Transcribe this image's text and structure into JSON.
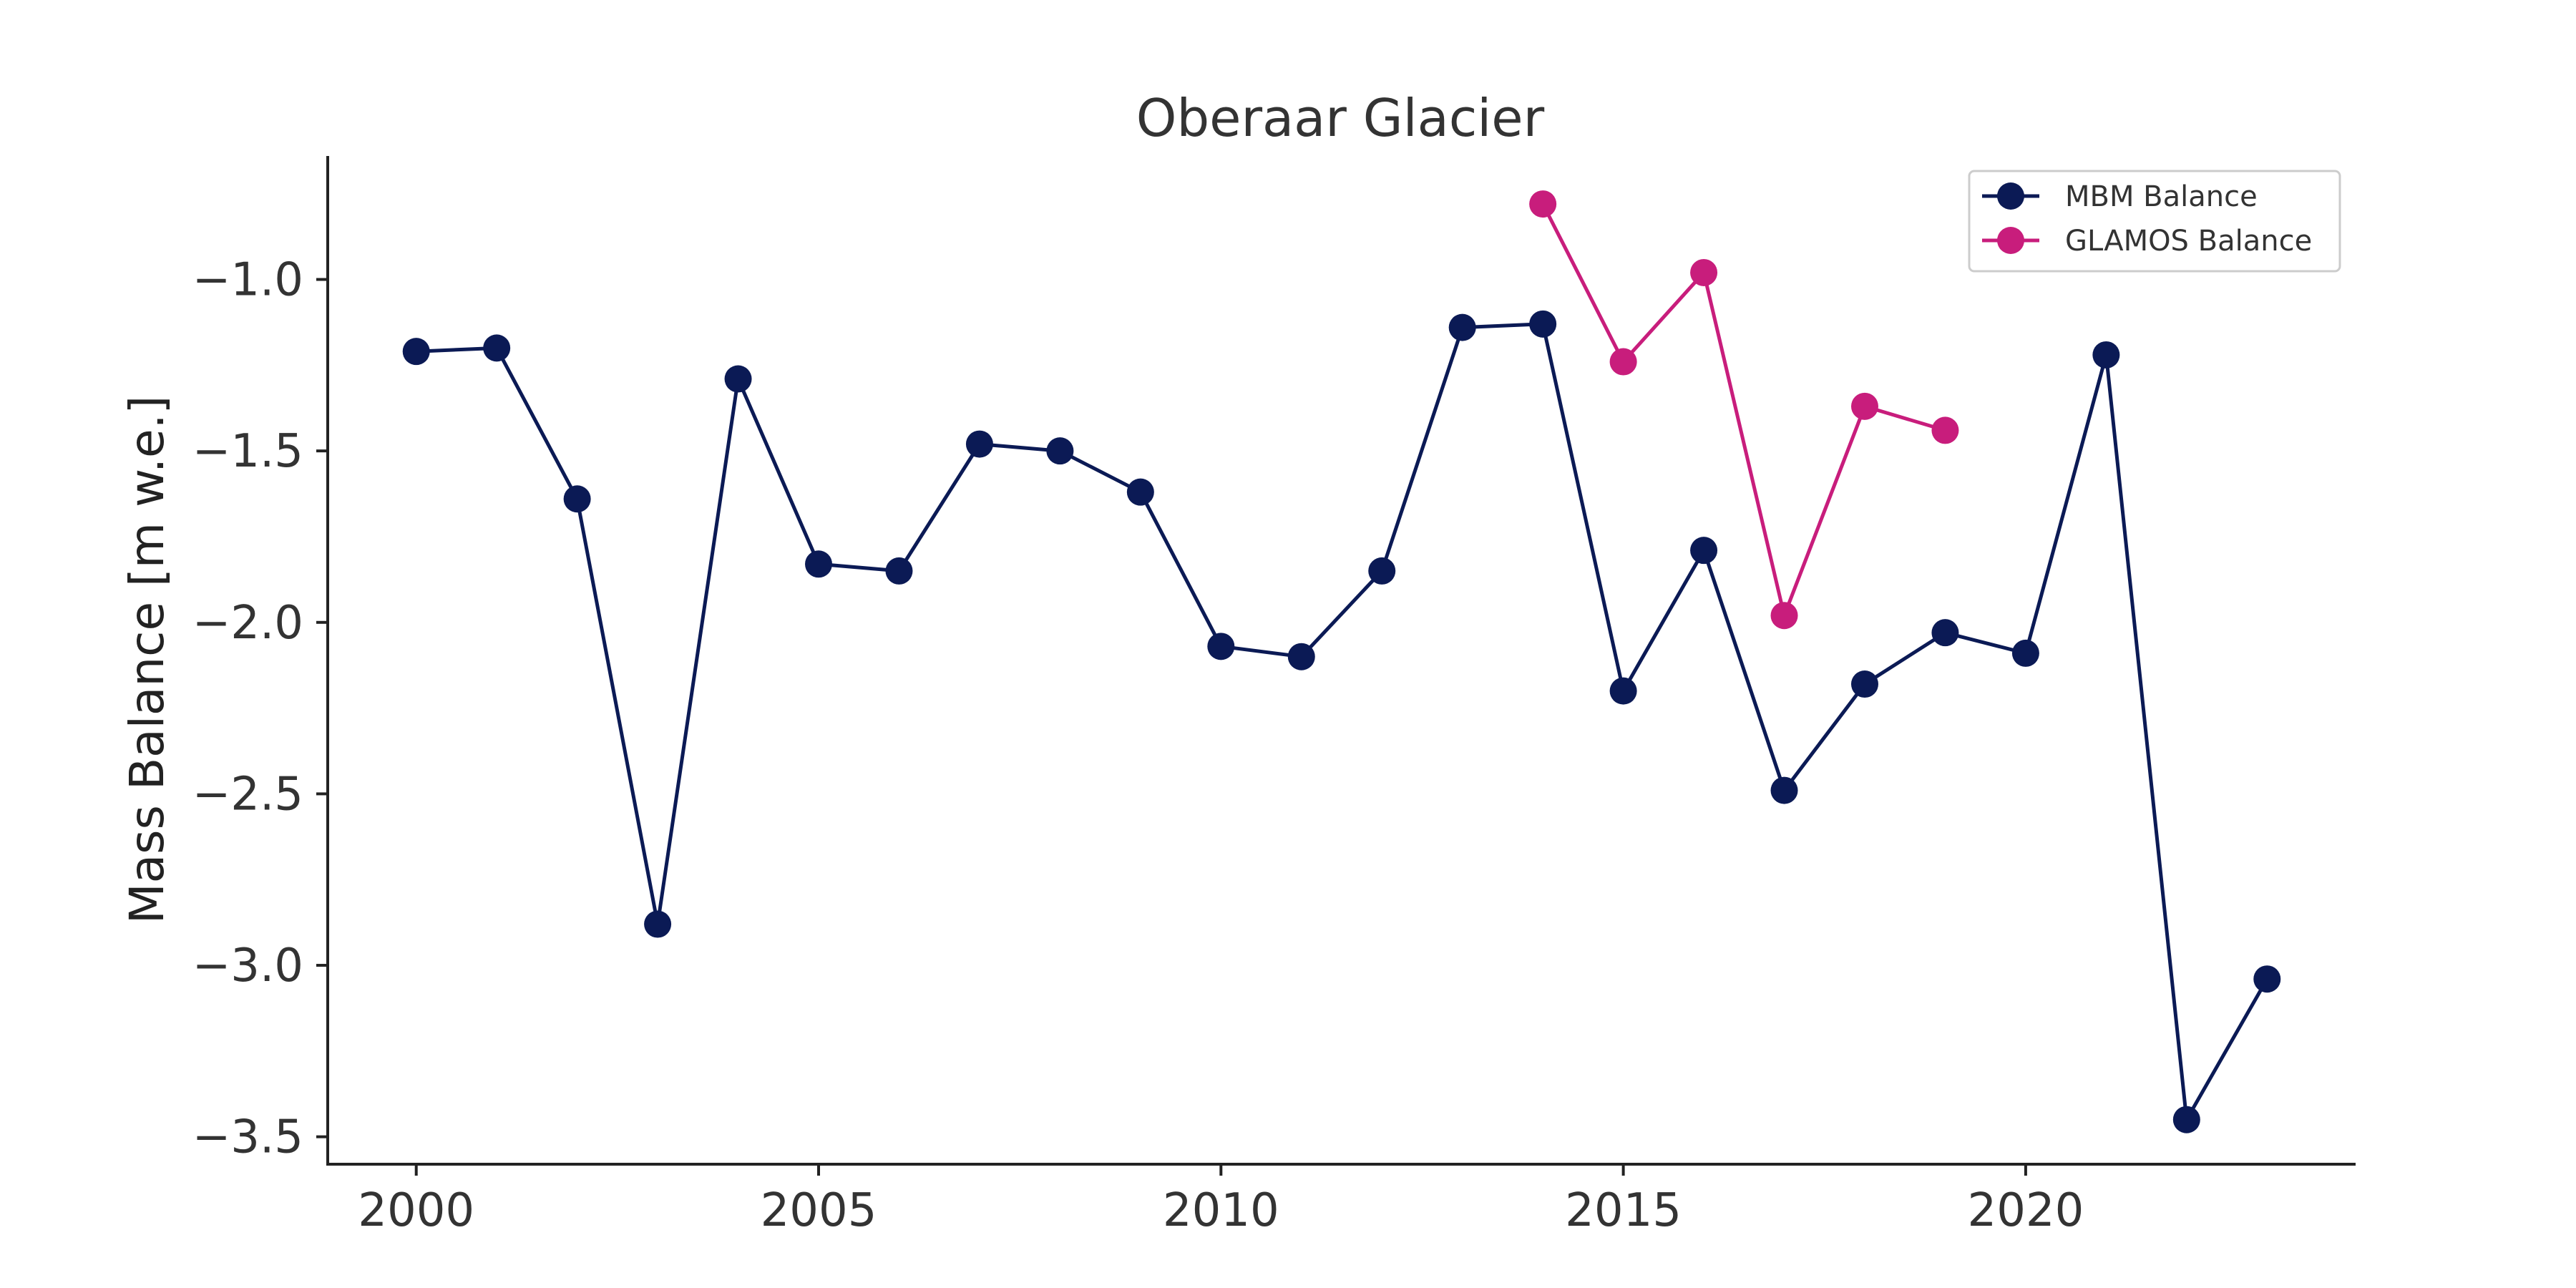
{
  "chart_data": {
    "type": "line",
    "title": "Oberaar Glacier",
    "xlabel": "",
    "ylabel": "Mass Balance [m w.e.]",
    "xlim": [
      1998.9,
      2024.1
    ],
    "ylim": [
      -3.58,
      -0.64
    ],
    "x_ticks": [
      {
        "value": 2000,
        "label": "2000"
      },
      {
        "value": 2005,
        "label": "2005"
      },
      {
        "value": 2010,
        "label": "2010"
      },
      {
        "value": 2015,
        "label": "2015"
      },
      {
        "value": 2020,
        "label": "2020"
      }
    ],
    "y_ticks": [
      {
        "value": -1.0,
        "label": "−1.0"
      },
      {
        "value": -1.5,
        "label": "−1.5"
      },
      {
        "value": -2.0,
        "label": "−2.0"
      },
      {
        "value": -2.5,
        "label": "−2.5"
      },
      {
        "value": -3.0,
        "label": "−3.0"
      },
      {
        "value": -3.5,
        "label": "−3.5"
      }
    ],
    "grid": false,
    "legend_position": "top-right",
    "series": [
      {
        "name": "MBM Balance",
        "color": "#0b1a55",
        "x": [
          2000,
          2001,
          2002,
          2003,
          2004,
          2005,
          2006,
          2007,
          2008,
          2009,
          2010,
          2011,
          2012,
          2013,
          2014,
          2015,
          2016,
          2017,
          2018,
          2019,
          2020,
          2021,
          2022,
          2023
        ],
        "y": [
          -1.21,
          -1.2,
          -1.64,
          -2.88,
          -1.29,
          -1.83,
          -1.85,
          -1.48,
          -1.5,
          -1.62,
          -2.07,
          -2.1,
          -1.85,
          -1.14,
          -1.13,
          -2.2,
          -1.79,
          -2.49,
          -2.18,
          -2.03,
          -2.09,
          -1.22,
          -3.45,
          -3.04
        ]
      },
      {
        "name": "GLAMOS Balance",
        "color": "#c81d7c",
        "x": [
          2014,
          2015,
          2016,
          2017,
          2018,
          2019
        ],
        "y": [
          -0.78,
          -1.24,
          -0.98,
          -1.98,
          -1.37,
          -1.44
        ]
      }
    ]
  }
}
